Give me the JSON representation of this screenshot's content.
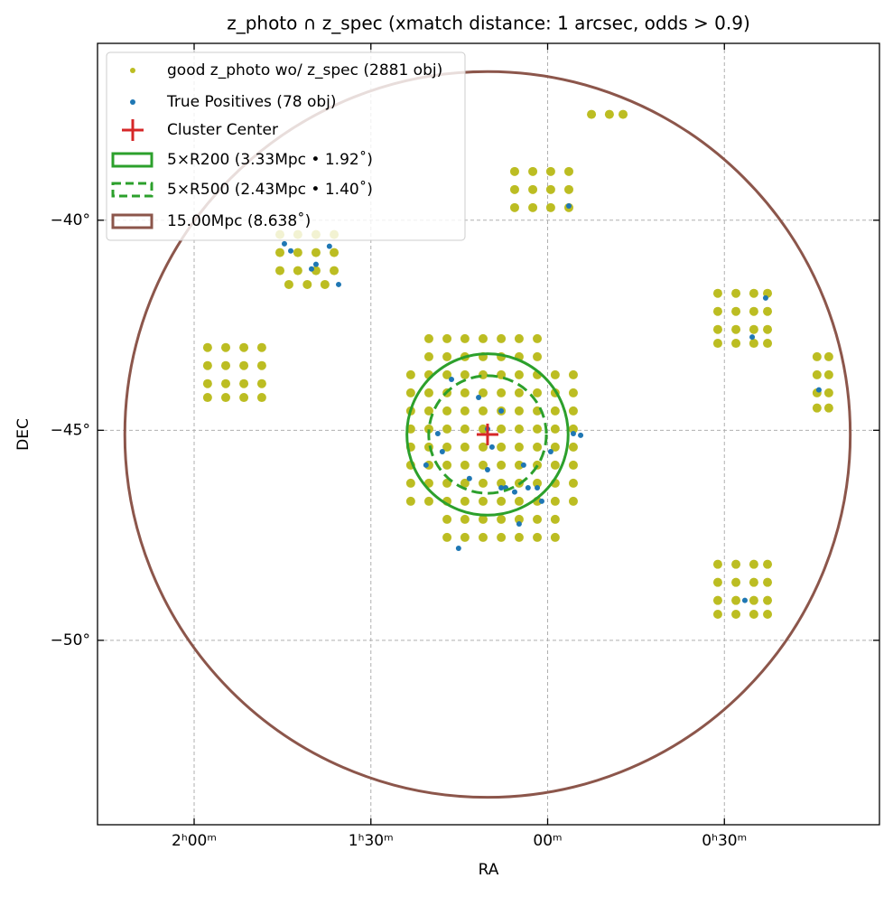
{
  "chart_data": {
    "type": "scatter",
    "title": "z_photo ∩ z_spec (xmatch distance: 1 arcsec, odds > 0.9)",
    "x_label": "RA",
    "y_label": "DEC",
    "xlim": [
      34.1,
      0.92
    ],
    "ylim": [
      -54.39,
      -35.79
    ],
    "xticks": [
      {
        "value": 30,
        "label": "2ʰ00ᵐ"
      },
      {
        "value": 22.5,
        "label": "1ʰ30ᵐ"
      },
      {
        "value": 15,
        "label": "00ᵐ"
      },
      {
        "value": 7.5,
        "label": "0ʰ30ᵐ"
      }
    ],
    "yticks": [
      {
        "value": -40,
        "label": "−40°"
      },
      {
        "value": -45,
        "label": "−45°"
      },
      {
        "value": -50,
        "label": "−50°"
      }
    ],
    "grid": true,
    "legend": "upper left",
    "series": [
      {
        "name": "good z_photo wo/ z_spec (2881 obj)",
        "color": "#bcbd22",
        "x": [
          26.36,
          25.6,
          24.83,
          24.06,
          26.36,
          25.6,
          24.83,
          24.06,
          26.36,
          25.6,
          24.83,
          24.06,
          25.98,
          25.2,
          24.45,
          16.4,
          15.63,
          14.87,
          14.1,
          16.4,
          15.63,
          14.87,
          14.1,
          16.4,
          15.63,
          14.87,
          14.1,
          13.14,
          12.38,
          11.8,
          29.43,
          28.66,
          27.89,
          27.13,
          29.43,
          28.66,
          27.89,
          27.13,
          29.43,
          28.66,
          27.89,
          27.13,
          29.43,
          28.66,
          27.89,
          27.13,
          7.78,
          7.01,
          6.25,
          5.67,
          7.78,
          7.01,
          6.25,
          5.67,
          7.78,
          7.01,
          6.25,
          5.67,
          7.78,
          7.01,
          6.25,
          5.67,
          3.57,
          3.07,
          3.57,
          3.07,
          3.57,
          3.07,
          3.57,
          3.07,
          7.78,
          7.01,
          6.25,
          5.67,
          7.78,
          7.01,
          6.25,
          5.67,
          7.78,
          7.01,
          6.25,
          5.67,
          7.78,
          7.01,
          6.25,
          5.67,
          20.04,
          19.27,
          18.51,
          17.74,
          16.97,
          16.21,
          15.44,
          20.04,
          19.27,
          18.51,
          17.74,
          16.97,
          16.21,
          15.44,
          20.81,
          20.04,
          19.27,
          18.51,
          17.74,
          16.97,
          16.21,
          15.44,
          14.68,
          13.91,
          20.81,
          20.04,
          19.27,
          18.51,
          17.74,
          16.97,
          16.21,
          15.44,
          14.68,
          13.91,
          20.81,
          20.04,
          19.27,
          18.51,
          17.74,
          16.97,
          16.21,
          15.44,
          14.68,
          13.91,
          20.81,
          20.04,
          19.27,
          18.51,
          17.74,
          16.97,
          16.21,
          15.44,
          14.68,
          13.91,
          20.81,
          20.04,
          19.27,
          18.51,
          17.74,
          16.97,
          16.21,
          15.44,
          14.68,
          13.91,
          20.81,
          20.04,
          19.27,
          18.51,
          17.74,
          16.97,
          16.21,
          15.44,
          14.68,
          13.91,
          20.81,
          20.04,
          19.27,
          18.51,
          17.74,
          16.97,
          16.21,
          15.44,
          14.68,
          13.91,
          20.81,
          20.04,
          19.27,
          18.51,
          17.74,
          16.97,
          16.21,
          15.44,
          14.68,
          13.91,
          19.27,
          18.51,
          17.74,
          16.97,
          16.21,
          15.44,
          14.68,
          19.27,
          18.51,
          17.74,
          16.97,
          16.21,
          15.44,
          14.68
        ],
        "y": [
          -40.34,
          -40.34,
          -40.34,
          -40.34,
          -40.77,
          -40.77,
          -40.77,
          -40.77,
          -41.2,
          -41.2,
          -41.2,
          -41.2,
          -41.53,
          -41.53,
          -41.53,
          -38.84,
          -38.84,
          -38.84,
          -38.84,
          -39.27,
          -39.27,
          -39.27,
          -39.27,
          -39.7,
          -39.7,
          -39.7,
          -39.7,
          -37.48,
          -37.48,
          -37.48,
          -43.03,
          -43.03,
          -43.03,
          -43.03,
          -43.46,
          -43.46,
          -43.46,
          -43.46,
          -43.89,
          -43.89,
          -43.89,
          -43.89,
          -44.22,
          -44.22,
          -44.22,
          -44.22,
          -41.74,
          -41.74,
          -41.74,
          -41.74,
          -42.17,
          -42.17,
          -42.17,
          -42.17,
          -42.6,
          -42.6,
          -42.6,
          -42.6,
          -42.93,
          -42.93,
          -42.93,
          -42.93,
          -43.25,
          -43.25,
          -43.68,
          -43.68,
          -44.11,
          -44.11,
          -44.47,
          -44.47,
          -48.19,
          -48.19,
          -48.19,
          -48.19,
          -48.62,
          -48.62,
          -48.62,
          -48.62,
          -49.05,
          -49.05,
          -49.05,
          -49.05,
          -49.38,
          -49.38,
          -49.38,
          -49.38,
          -42.82,
          -42.82,
          -42.82,
          -42.82,
          -42.82,
          -42.82,
          -42.82,
          -43.25,
          -43.25,
          -43.25,
          -43.25,
          -43.25,
          -43.25,
          -43.25,
          -43.68,
          -43.68,
          -43.68,
          -43.68,
          -43.68,
          -43.68,
          -43.68,
          -43.68,
          -43.68,
          -43.68,
          -44.11,
          -44.11,
          -44.11,
          -44.11,
          -44.11,
          -44.11,
          -44.11,
          -44.11,
          -44.11,
          -44.11,
          -44.54,
          -44.54,
          -44.54,
          -44.54,
          -44.54,
          -44.54,
          -44.54,
          -44.54,
          -44.54,
          -44.54,
          -44.97,
          -44.97,
          -44.97,
          -44.97,
          -44.97,
          -44.97,
          -44.97,
          -44.97,
          -44.97,
          -44.97,
          -45.4,
          -45.4,
          -45.4,
          -45.4,
          -45.4,
          -45.4,
          -45.4,
          -45.4,
          -45.4,
          -45.4,
          -45.83,
          -45.83,
          -45.83,
          -45.83,
          -45.83,
          -45.83,
          -45.83,
          -45.83,
          -45.83,
          -45.83,
          -46.26,
          -46.26,
          -46.26,
          -46.26,
          -46.26,
          -46.26,
          -46.26,
          -46.26,
          -46.26,
          -46.26,
          -46.69,
          -46.69,
          -46.69,
          -46.69,
          -46.69,
          -46.69,
          -46.69,
          -46.69,
          -46.69,
          -46.69,
          -47.12,
          -47.12,
          -47.12,
          -47.12,
          -47.12,
          -47.12,
          -47.12,
          -47.55,
          -47.55,
          -47.55,
          -47.55,
          -47.55,
          -47.55,
          -47.55
        ]
      },
      {
        "name": "True Positives (78 obj)",
        "color": "#1f77b4",
        "x": [
          26.17,
          25.9,
          24.26,
          24.83,
          25.02,
          23.87,
          14.1,
          5.75,
          6.32,
          3.49,
          6.63,
          18.78,
          20.16,
          19.08,
          17.93,
          16.97,
          17.55,
          17.36,
          17.55,
          18.32,
          16.78,
          16.4,
          15.83,
          15.44,
          15.25,
          16.02,
          14.87,
          13.91,
          13.6,
          19.66,
          19.47,
          16.21,
          16.97
        ],
        "y": [
          -40.56,
          -40.73,
          -40.62,
          -41.05,
          -41.16,
          -41.53,
          -39.66,
          -41.85,
          -42.78,
          -44.04,
          -49.05,
          -47.81,
          -45.83,
          -43.79,
          -44.22,
          -44.54,
          -44.97,
          -45.4,
          -45.94,
          -46.15,
          -46.37,
          -46.47,
          -46.37,
          -46.37,
          -46.69,
          -45.83,
          -45.51,
          -45.08,
          -45.12,
          -45.08,
          -45.51,
          -47.23,
          -46.37
        ]
      }
    ],
    "center": {
      "name": "Cluster Center",
      "color": "#d62728",
      "x": 17.55,
      "y": -45.1
    },
    "circles": [
      {
        "name": "5×R200 (3.33Mpc • 1.92˚)",
        "radius": 1.92,
        "color": "#2ca02c",
        "dashed": false
      },
      {
        "name": "5×R500 (2.43Mpc • 1.40˚)",
        "radius": 1.4,
        "color": "#2ca02c",
        "dashed": true
      },
      {
        "name": "15.00Mpc (8.638˚)",
        "radius": 8.638,
        "color": "#8c564b",
        "dashed": false
      }
    ]
  }
}
